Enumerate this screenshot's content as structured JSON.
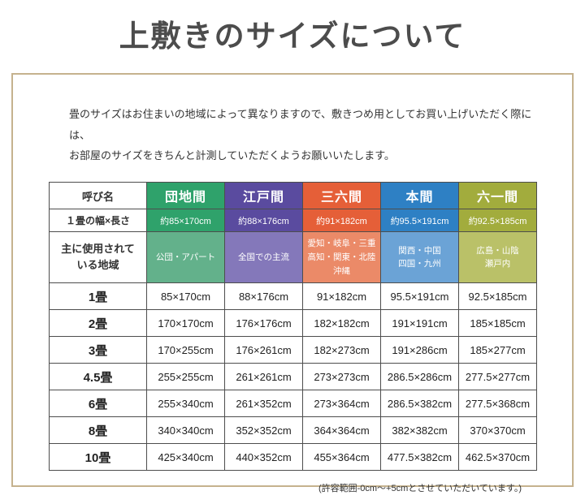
{
  "page": {
    "title": "上敷きのサイズについて",
    "intro_line1": "畳のサイズはお住まいの地域によって異なりますので、敷きつめ用としてお買い上げいただく際には、",
    "intro_line2": "お部屋のサイズをきちんと計測していただくようお願いいたします。",
    "footnote": "(許容範囲-0cm〜+5cmとさせていただいています。)"
  },
  "table": {
    "corner_label": "呼び名",
    "columns": [
      {
        "name": "団地間",
        "header_color": "#2fa26b",
        "region_color": "#63b18b"
      },
      {
        "name": "江戸間",
        "header_color": "#5a4b9f",
        "region_color": "#8478ba"
      },
      {
        "name": "三六間",
        "header_color": "#e55f38",
        "region_color": "#eb8a68"
      },
      {
        "name": "本間",
        "header_color": "#2e80c4",
        "region_color": "#6ba3d6"
      },
      {
        "name": "六一間",
        "header_color": "#a2ac3d",
        "region_color": "#bac168"
      }
    ],
    "width_row": {
      "label": "１畳の幅×長さ",
      "values": [
        "約85×170cm",
        "約88×176cm",
        "約91×182cm",
        "約95.5×191cm",
        "約92.5×185cm"
      ]
    },
    "region_row": {
      "label_line1": "主に使用されて",
      "label_line2": "いる地域",
      "cells": [
        [
          "公団・アパート"
        ],
        [
          "全国での主流"
        ],
        [
          "愛知・岐阜・三重",
          "高知・関東・北陸",
          "沖縄"
        ],
        [
          "関西・中国",
          "四国・九州"
        ],
        [
          "広島・山陰",
          "瀬戸内"
        ]
      ]
    },
    "size_rows": [
      {
        "label": "1畳",
        "values": [
          "85×170cm",
          "88×176cm",
          "91×182cm",
          "95.5×191cm",
          "92.5×185cm"
        ]
      },
      {
        "label": "2畳",
        "values": [
          "170×170cm",
          "176×176cm",
          "182×182cm",
          "191×191cm",
          "185×185cm"
        ]
      },
      {
        "label": "3畳",
        "values": [
          "170×255cm",
          "176×261cm",
          "182×273cm",
          "191×286cm",
          "185×277cm"
        ]
      },
      {
        "label": "4.5畳",
        "values": [
          "255×255cm",
          "261×261cm",
          "273×273cm",
          "286.5×286cm",
          "277.5×277cm"
        ]
      },
      {
        "label": "6畳",
        "values": [
          "255×340cm",
          "261×352cm",
          "273×364cm",
          "286.5×382cm",
          "277.5×368cm"
        ]
      },
      {
        "label": "8畳",
        "values": [
          "340×340cm",
          "352×352cm",
          "364×364cm",
          "382×382cm",
          "370×370cm"
        ]
      },
      {
        "label": "10畳",
        "values": [
          "425×340cm",
          "440×352cm",
          "455×364cm",
          "477.5×382cm",
          "462.5×370cm"
        ]
      }
    ]
  }
}
